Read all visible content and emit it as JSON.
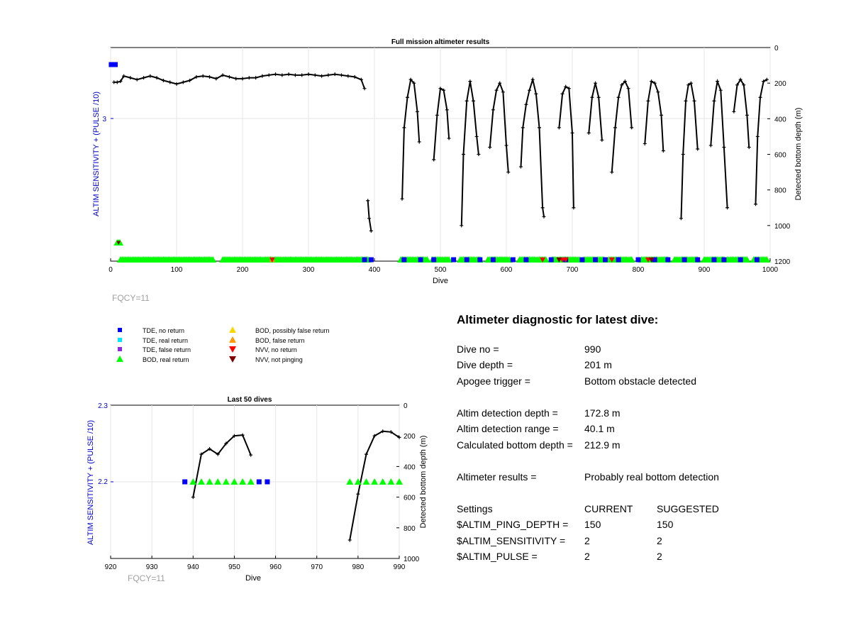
{
  "colors": {
    "tde_no_return": "#0000ff",
    "tde_real_return": "#00e5ff",
    "tde_false_return": "#8a2be2",
    "bod_real_return": "#00ff00",
    "bod_possibly_false": "#ffd700",
    "bod_false_return": "#ff9900",
    "nvv_no_return": "#ff0000",
    "nvv_not_pinging": "#800000",
    "left_axis": "#0000cc",
    "fqcy_text": "#a0a0a0"
  },
  "legend": [
    {
      "label": "TDE, no return",
      "marker": "square",
      "color": "#0000ff"
    },
    {
      "label": "TDE, real return",
      "marker": "square",
      "color": "#00e5ff"
    },
    {
      "label": "TDE, false return",
      "marker": "square",
      "color": "#8a2be2"
    },
    {
      "label": "BOD, real return",
      "marker": "triangle-up",
      "color": "#00ff00"
    },
    {
      "label": "BOD, possibly false return",
      "marker": "triangle-up",
      "color": "#ffd700"
    },
    {
      "label": "BOD, false return",
      "marker": "triangle-up",
      "color": "#ff9900"
    },
    {
      "label": "NVV, no return",
      "marker": "triangle-down",
      "color": "#ff0000"
    },
    {
      "label": "NVV, not pinging",
      "marker": "triangle-down",
      "color": "#800000"
    }
  ],
  "chart_data": [
    {
      "type": "scatter",
      "title": "Full mission altimeter results",
      "xlabel": "Dive",
      "ylabel": "ALTIM SENSITIVITY + (PULSE /10)",
      "y2label": "Detected bottom depth (m)",
      "annotation": "FQCY=11",
      "xlim": [
        0,
        1000
      ],
      "xticks": [
        "0",
        "100",
        "200",
        "300",
        "400",
        "500",
        "600",
        "700",
        "800",
        "900",
        "1000"
      ],
      "yticks": [
        "3"
      ],
      "y2lim": [
        0,
        1200
      ],
      "y2reversed": true,
      "y2ticks": [
        "0",
        "200",
        "400",
        "600",
        "800",
        "1000",
        "1200"
      ],
      "grid": true,
      "depth_segments": [
        [
          [
            5,
            195
          ],
          [
            10,
            195
          ],
          [
            15,
            190
          ],
          [
            20,
            160
          ],
          [
            30,
            170
          ],
          [
            40,
            180
          ],
          [
            50,
            170
          ],
          [
            60,
            160
          ],
          [
            70,
            170
          ],
          [
            80,
            185
          ],
          [
            90,
            195
          ],
          [
            100,
            205
          ],
          [
            110,
            195
          ],
          [
            120,
            185
          ],
          [
            130,
            165
          ],
          [
            140,
            160
          ],
          [
            150,
            165
          ],
          [
            160,
            175
          ],
          [
            170,
            155
          ],
          [
            180,
            165
          ],
          [
            190,
            175
          ],
          [
            200,
            175
          ],
          [
            210,
            170
          ],
          [
            220,
            170
          ],
          [
            230,
            160
          ],
          [
            240,
            155
          ],
          [
            250,
            150
          ],
          [
            260,
            155
          ],
          [
            270,
            150
          ],
          [
            280,
            155
          ],
          [
            290,
            155
          ],
          [
            300,
            150
          ],
          [
            310,
            155
          ],
          [
            320,
            160
          ],
          [
            330,
            155
          ],
          [
            340,
            150
          ],
          [
            350,
            155
          ],
          [
            360,
            160
          ],
          [
            370,
            165
          ],
          [
            380,
            180
          ],
          [
            385,
            230
          ]
        ],
        [
          [
            390,
            860
          ],
          [
            392,
            960
          ],
          [
            395,
            1030
          ]
        ],
        [
          [
            442,
            850
          ],
          [
            445,
            450
          ],
          [
            450,
            280
          ],
          [
            455,
            180
          ],
          [
            460,
            200
          ],
          [
            465,
            360
          ],
          [
            468,
            530
          ]
        ],
        [
          [
            490,
            630
          ],
          [
            495,
            380
          ],
          [
            500,
            230
          ],
          [
            505,
            240
          ],
          [
            510,
            350
          ],
          [
            513,
            510
          ]
        ],
        [
          [
            532,
            1000
          ],
          [
            535,
            600
          ],
          [
            540,
            300
          ],
          [
            545,
            190
          ],
          [
            550,
            300
          ],
          [
            555,
            500
          ],
          [
            558,
            600
          ]
        ],
        [
          [
            575,
            560
          ],
          [
            580,
            350
          ],
          [
            585,
            240
          ],
          [
            590,
            200
          ],
          [
            595,
            250
          ],
          [
            600,
            550
          ],
          [
            603,
            700
          ]
        ],
        [
          [
            622,
            670
          ],
          [
            625,
            450
          ],
          [
            630,
            320
          ],
          [
            635,
            240
          ],
          [
            640,
            180
          ],
          [
            645,
            260
          ],
          [
            650,
            450
          ],
          [
            655,
            900
          ],
          [
            657,
            950
          ]
        ],
        [
          [
            680,
            450
          ],
          [
            685,
            260
          ],
          [
            690,
            220
          ],
          [
            695,
            230
          ],
          [
            700,
            480
          ],
          [
            702,
            900
          ]
        ],
        [
          [
            725,
            480
          ],
          [
            730,
            280
          ],
          [
            735,
            200
          ],
          [
            740,
            280
          ],
          [
            745,
            520
          ]
        ],
        [
          [
            760,
            700
          ],
          [
            765,
            450
          ],
          [
            770,
            280
          ],
          [
            775,
            210
          ],
          [
            780,
            190
          ],
          [
            785,
            230
          ],
          [
            790,
            450
          ]
        ],
        [
          [
            810,
            540
          ],
          [
            815,
            300
          ],
          [
            820,
            190
          ],
          [
            825,
            200
          ],
          [
            830,
            250
          ],
          [
            835,
            380
          ],
          [
            838,
            580
          ]
        ],
        [
          [
            865,
            960
          ],
          [
            868,
            600
          ],
          [
            872,
            300
          ],
          [
            876,
            210
          ],
          [
            880,
            200
          ],
          [
            885,
            300
          ],
          [
            890,
            570
          ]
        ],
        [
          [
            910,
            550
          ],
          [
            915,
            300
          ],
          [
            920,
            190
          ],
          [
            925,
            240
          ],
          [
            930,
            560
          ],
          [
            935,
            900
          ]
        ],
        [
          [
            945,
            360
          ],
          [
            950,
            210
          ],
          [
            955,
            180
          ],
          [
            960,
            210
          ],
          [
            965,
            380
          ],
          [
            968,
            560
          ]
        ],
        [
          [
            978,
            880
          ],
          [
            981,
            500
          ],
          [
            985,
            280
          ],
          [
            990,
            190
          ],
          [
            995,
            180
          ]
        ]
      ],
      "markers": [
        {
          "kind": "tde_no_return",
          "dives": [
            1,
            2,
            3,
            4,
            5,
            6,
            7
          ]
        },
        {
          "kind": "bod_real_return",
          "dives": [
            10,
            12,
            14
          ]
        },
        {
          "kind": "nvv_not_pinging",
          "dives": [
            12
          ]
        },
        {
          "kind": "bod_real_return_band",
          "ranges": [
            [
              15,
              155
            ],
            [
              170,
              390
            ],
            [
              440,
              480
            ],
            [
              488,
              515
            ],
            [
              530,
              560
            ],
            [
              572,
              605
            ],
            [
              620,
              660
            ],
            [
              670,
              710
            ],
            [
              718,
              750
            ],
            [
              755,
              790
            ],
            [
              805,
              845
            ],
            [
              855,
              890
            ],
            [
              900,
              930
            ],
            [
              935,
              965
            ],
            [
              975,
              995
            ]
          ]
        },
        {
          "kind": "tde_no_return_bottom",
          "dives": [
            385,
            395,
            445,
            470,
            490,
            520,
            540,
            560,
            580,
            610,
            630,
            668,
            690,
            715,
            735,
            750,
            770,
            800,
            825,
            845,
            870,
            890,
            915,
            930,
            955,
            980
          ]
        },
        {
          "kind": "bod_false_return_bottom",
          "dives": [
            245
          ]
        },
        {
          "kind": "nvv_no_return_bottom",
          "dives": [
            245,
            655,
            685,
            690,
            760,
            815
          ]
        },
        {
          "kind": "nvv_not_pinging_bottom",
          "dives": [
            680,
            820
          ]
        }
      ]
    },
    {
      "type": "scatter",
      "title": "Last 50 dives",
      "xlabel": "Dive",
      "ylabel": "ALTIM SENSITIVITY + (PULSE /10)",
      "y2label": "Detected bottom depth (m)",
      "annotation": "FQCY=11",
      "xlim": [
        920,
        990
      ],
      "xticks": [
        "920",
        "930",
        "940",
        "950",
        "960",
        "970",
        "980",
        "990"
      ],
      "ylim": [
        2.1,
        2.3
      ],
      "yticks": [
        "2.3",
        "2.2"
      ],
      "y2lim": [
        0,
        1000
      ],
      "y2reversed": true,
      "y2ticks": [
        "0",
        "200",
        "400",
        "600",
        "800",
        "1000"
      ],
      "grid": true,
      "depth_segments": [
        [
          [
            940,
            600
          ],
          [
            942,
            320
          ],
          [
            944,
            285
          ],
          [
            946,
            320
          ],
          [
            948,
            250
          ],
          [
            950,
            200
          ],
          [
            952,
            195
          ],
          [
            954,
            325
          ]
        ],
        [
          [
            978,
            880
          ],
          [
            980,
            580
          ],
          [
            982,
            320
          ],
          [
            984,
            200
          ],
          [
            986,
            170
          ],
          [
            988,
            175
          ],
          [
            990,
            210
          ]
        ]
      ],
      "markers": [
        {
          "kind": "tde_no_return",
          "dives": [
            938,
            956,
            958
          ],
          "y": 2.2
        },
        {
          "kind": "bod_real_return",
          "dives": [
            940,
            942,
            944,
            946,
            948,
            950,
            952,
            954,
            978,
            980,
            982,
            984,
            986,
            988,
            990
          ],
          "y": 2.2
        }
      ]
    }
  ],
  "diagnostic": {
    "title": "Altimeter diagnostic for latest dive:",
    "dive_no_label": "Dive no =",
    "dive_no_value": "990",
    "dive_depth_label": "Dive depth =",
    "dive_depth_value": "201 m",
    "apogee_label": "Apogee trigger =",
    "apogee_value": "Bottom obstacle detected",
    "altim_det_depth_label": "Altim detection depth =",
    "altim_det_depth_value": "172.8 m",
    "altim_det_range_label": "Altim detection range =",
    "altim_det_range_value": "40.1 m",
    "calc_bottom_label": "Calculated bottom depth =",
    "calc_bottom_value": "212.9 m",
    "results_label": "Altimeter results =",
    "results_value": "Probably real bottom detection",
    "settings_label": "Settings",
    "current_header": "CURRENT",
    "suggested_header": "SUGGESTED",
    "settings": [
      {
        "name": "$ALTIM_PING_DEPTH =",
        "current": "150",
        "suggested": "150"
      },
      {
        "name": "$ALTIM_SENSITIVITY =",
        "current": "2",
        "suggested": "2"
      },
      {
        "name": "$ALTIM_PULSE =",
        "current": "2",
        "suggested": "2"
      }
    ]
  }
}
